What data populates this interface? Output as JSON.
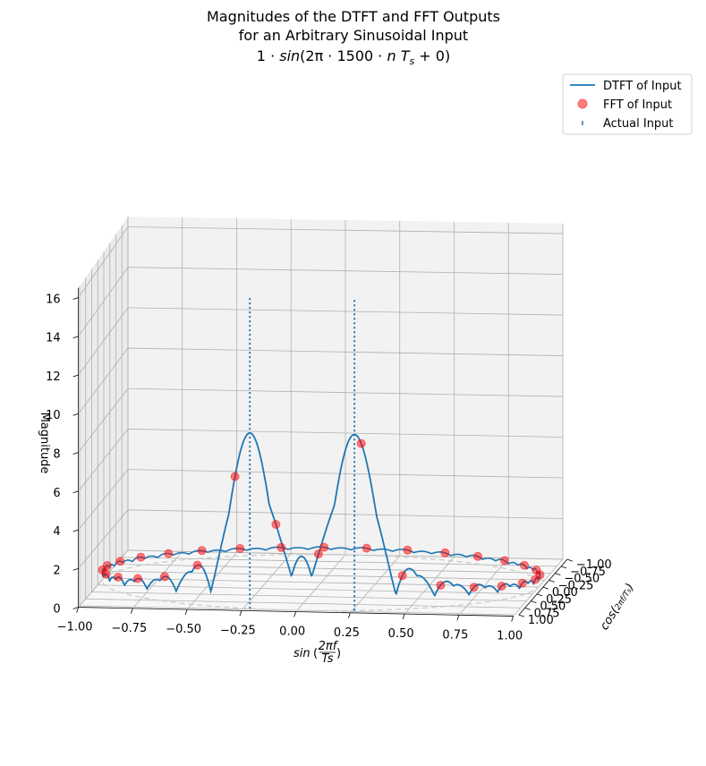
{
  "chart_data": {
    "type": "line",
    "projection": "3d",
    "title": [
      "Magnitudes of the DTFT and FFT Outputs",
      "for an Arbitrary Sinusoidal Input",
      "1 · sin(2π · 1500 · n T_s + 0)"
    ],
    "title_lines": [
      "Magnitudes of the DTFT and FFT Outputs",
      "for an Arbitrary Sinusoidal Input"
    ],
    "title_math": {
      "a": "1 · ",
      "b": "sin",
      "c": "(2π · 1500 · ",
      "d": "n",
      "e": " ",
      "f": "T",
      "g": "s",
      "h": " + 0)"
    },
    "xlabel": "sin(2πf/Ts)",
    "xlabel_parts": {
      "a": "sin",
      "b": "(",
      "num": "2πf",
      "den": "Ts",
      "c": ")"
    },
    "ylabel": "cos(2πf/Ts)",
    "zlabel": "Magnitude",
    "xticks": [
      "−1.00",
      "−0.75",
      "−0.50",
      "−0.25",
      "0.00",
      "0.25",
      "0.50",
      "0.75",
      "1.00"
    ],
    "yticks": [
      "−1.00",
      "−0.75",
      "−0.50",
      "−0.25",
      "0.00",
      "0.25",
      "0.50",
      "0.75",
      "1.00"
    ],
    "zticks": [
      "0",
      "2",
      "4",
      "6",
      "8",
      "10",
      "12",
      "14",
      "16"
    ],
    "zlim": [
      0,
      16.5
    ],
    "grid": true,
    "legend": {
      "placement": "upper right",
      "entries": [
        "DTFT of Input",
        "FFT of Input",
        "Actual Input"
      ]
    },
    "n_fft": 32,
    "dtft_peak": 16,
    "actual_input": {
      "x": [
        -0.22,
        0.26
      ],
      "y": [
        0.97,
        0.97
      ],
      "magnitude": [
        16,
        16
      ]
    },
    "series": [
      {
        "name": "DTFT of Input",
        "style": "line",
        "color": "#1f77b4"
      },
      {
        "name": "FFT of Input",
        "style": "markers",
        "color": "#ff0000",
        "alpha": 0.5
      },
      {
        "name": "Actual Input",
        "style": "dotted stems",
        "color": "#1f77b4"
      }
    ],
    "unit_circle": {
      "color": "#cccccc",
      "style": "dashed"
    }
  }
}
